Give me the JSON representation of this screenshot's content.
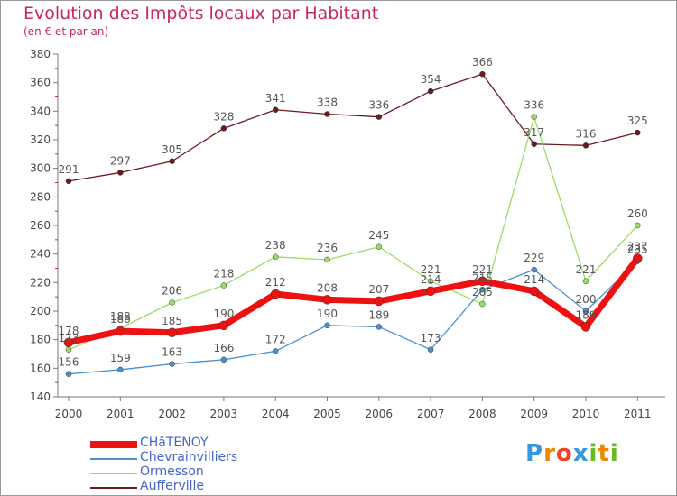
{
  "chart_data": {
    "type": "line",
    "title": "Evolution des Impôts locaux par Habitant",
    "subtitle": "(en € et par an)",
    "x": [
      "2000",
      "2001",
      "2002",
      "2003",
      "2004",
      "2005",
      "2006",
      "2007",
      "2008",
      "2009",
      "2010",
      "2011"
    ],
    "ylim": [
      140,
      380
    ],
    "yticks": [
      140,
      160,
      180,
      200,
      220,
      240,
      260,
      280,
      300,
      320,
      340,
      360,
      380
    ],
    "series": [
      {
        "name": "Aufferville",
        "color": "#6b1a1f",
        "values": [
          291,
          297,
          305,
          328,
          341,
          338,
          336,
          354,
          366,
          317,
          316,
          325
        ]
      },
      {
        "name": "Ormesson",
        "color": "#99dd66",
        "values": [
          173,
          188,
          206,
          218,
          238,
          236,
          245,
          221,
          205,
          336,
          221,
          260
        ]
      },
      {
        "name": "Chevrainvilliers",
        "color": "#4a90d0",
        "values": [
          156,
          159,
          163,
          166,
          172,
          190,
          189,
          173,
          215,
          229,
          200,
          235
        ]
      },
      {
        "name": "CHâTENOY",
        "color": "#ee1111",
        "values": [
          178,
          186,
          185,
          190,
          212,
          208,
          207,
          214,
          221,
          214,
          189,
          237
        ]
      }
    ],
    "legend_position": "bottom-left",
    "grid": false
  },
  "logo": {
    "text": "Proxiti",
    "letters": [
      "P",
      "r",
      "o",
      "x",
      "i",
      "t",
      "i"
    ],
    "colors": [
      "#3399dd",
      "#ee8800",
      "#ee4422",
      "#3399dd",
      "#66bb22",
      "#ee8800",
      "#66bb22"
    ]
  }
}
